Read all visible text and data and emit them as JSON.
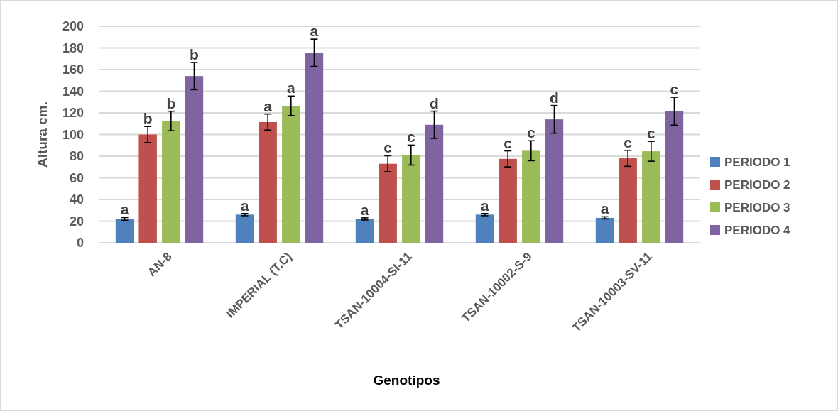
{
  "chart_data": {
    "type": "bar",
    "xlabel": "Genotipos",
    "ylabel": "Altura cm.",
    "categories": [
      "AN-8",
      "IMPERIAL (T.C)",
      "TSAN-10004-SI-11",
      "TSAN-10002-S-9",
      "TSAN-10003-SV-11"
    ],
    "series": [
      {
        "name": "PERIODO 1",
        "color": "#4f81bd",
        "values": [
          22,
          26,
          22,
          26,
          23
        ],
        "errors": [
          1.3,
          1,
          1,
          1,
          1
        ],
        "value_labels": [
          "a",
          "a",
          "a",
          "a",
          "a"
        ]
      },
      {
        "name": "PERIODO 2",
        "color": "#c0504d",
        "values": [
          100,
          111.5,
          73,
          77.5,
          78
        ],
        "errors": [
          7.4,
          7.4,
          7.4,
          7.4,
          7.4
        ],
        "value_labels": [
          "b",
          "a",
          "c",
          "c",
          "c"
        ]
      },
      {
        "name": "PERIODO 3",
        "color": "#9bbb59",
        "values": [
          112.5,
          126.5,
          81,
          85,
          84.5
        ],
        "errors": [
          9,
          9,
          9.2,
          9.2,
          9.2
        ],
        "value_labels": [
          "b",
          "a",
          "c",
          "c",
          "c"
        ]
      },
      {
        "name": "PERIODO 4",
        "color": "#8064a2",
        "values": [
          154,
          175.5,
          109,
          114,
          121.5
        ],
        "errors": [
          12.6,
          12.6,
          12.6,
          12.8,
          12.9
        ],
        "value_labels": [
          "b",
          "a",
          "d",
          "d",
          "c"
        ]
      }
    ],
    "ylim": [
      0,
      200
    ],
    "yticks": [
      0,
      20,
      40,
      60,
      80,
      100,
      120,
      140,
      160,
      180,
      200
    ],
    "grid": "y",
    "legend": "right"
  }
}
